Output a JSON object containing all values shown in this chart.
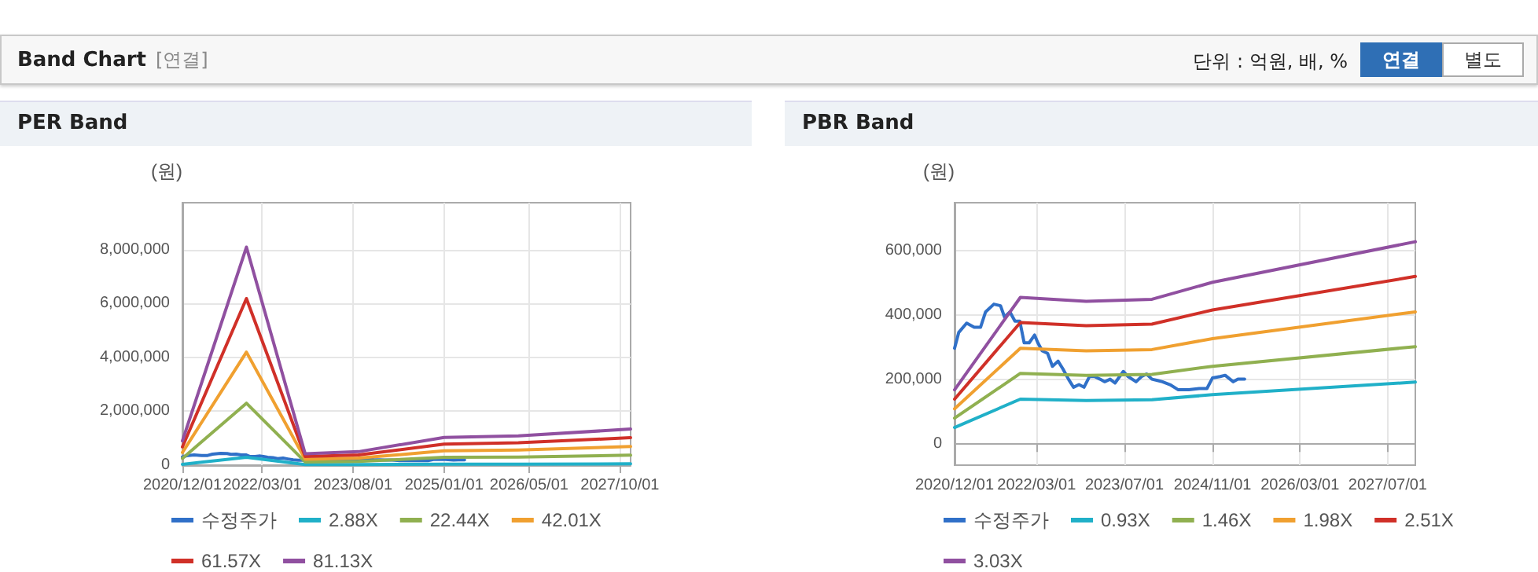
{
  "chart_data": [
    {
      "type": "other",
      "title": "Band Chart",
      "annotations": [
        "[연결]",
        "단위 : 억원, 배, %",
        "연결",
        "별도"
      ]
    },
    {
      "type": "line",
      "title": "PER Band",
      "ylabel": "(원)",
      "legend": "bottom",
      "grid": true,
      "marker": "none",
      "line_style": "solid",
      "x": [
        "2020-12-01",
        "2021-12-01",
        "2022-11-01",
        "2023-09-01",
        "2025-01-01",
        "2026-03-01",
        "2027-12-01"
      ],
      "xlim": [
        "2020-12-01",
        "2027-12-01"
      ],
      "xticks": [
        {
          "value": "2020-12-01",
          "label": "2020/12/01"
        },
        {
          "value": "2022-03-01",
          "label": "2022/03/01"
        },
        {
          "value": "2023-08-01",
          "label": "2023/08/01"
        },
        {
          "value": "2025-01-01",
          "label": "2025/01/01"
        },
        {
          "value": "2026-05-01",
          "label": "2026/05/01"
        },
        {
          "value": "2027-10-01",
          "label": "2027/10/01"
        }
      ],
      "ylim": [
        0,
        9750000
      ],
      "yticks": [
        0,
        {
          "value": 2000000,
          "label": "2,000,000"
        },
        {
          "value": 4000000,
          "label": "4,000,000"
        },
        {
          "value": 6000000,
          "label": "6,000,000"
        },
        {
          "value": 8000000,
          "label": "8,000,000"
        }
      ],
      "series": [
        {
          "name": "수정주가",
          "color": "#3070c8",
          "x": [
            "2020-12-01",
            "2020-12-24",
            "2021-02-06",
            "2021-03-20",
            "2021-04-24",
            "2021-05-22",
            "2021-07-07",
            "2021-08-13",
            "2021-09-04",
            "2021-10-04",
            "2021-11-01",
            "2021-11-28",
            "2021-12-22",
            "2022-01-19",
            "2022-02-18",
            "2022-03-08",
            "2022-04-01",
            "2022-05-01",
            "2022-05-28",
            "2022-06-28",
            "2022-07-25",
            "2022-08-25",
            "2022-09-22",
            "2022-10-22",
            "2022-11-19",
            "2022-12-19",
            "2023-01-16",
            "2023-02-16",
            "2023-03-13",
            "2023-04-13",
            "2023-05-10",
            "2023-06-25",
            "2023-07-22",
            "2023-09-04",
            "2023-10-04",
            "2023-11-01",
            "2023-12-01",
            "2024-01-01",
            "2024-01-28",
            "2024-03-10",
            "2024-04-25",
            "2024-06-22",
            "2024-08-19",
            "2024-10-01",
            "2024-11-01",
            "2024-12-13",
            "2025-01-10",
            "2025-02-24",
            "2025-03-22",
            "2025-04-28"
          ],
          "values": [
            300000,
            350000,
            380000,
            360000,
            360000,
            410000,
            440000,
            430000,
            400000,
            410000,
            380000,
            380000,
            320000,
            320000,
            340000,
            320000,
            290000,
            280000,
            240000,
            260000,
            230000,
            200000,
            180000,
            190000,
            180000,
            210000,
            210000,
            200000,
            190000,
            200000,
            190000,
            230000,
            210000,
            190000,
            210000,
            220000,
            200000,
            200000,
            190000,
            190000,
            170000,
            170000,
            170000,
            170000,
            210000,
            210000,
            210000,
            190000,
            200000,
            200000
          ]
        },
        {
          "name": "2.88X",
          "color": "#20b0c8",
          "values": [
            30000,
            290000,
            20000,
            20000,
            40000,
            40000,
            50000
          ]
        },
        {
          "name": "22.44X",
          "color": "#90b050",
          "values": [
            250000,
            2300000,
            120000,
            140000,
            290000,
            300000,
            370000
          ]
        },
        {
          "name": "42.01X",
          "color": "#f0a030",
          "values": [
            470000,
            4200000,
            220000,
            260000,
            530000,
            560000,
            690000
          ]
        },
        {
          "name": "61.57X",
          "color": "#d03028",
          "values": [
            680000,
            6190000,
            320000,
            380000,
            780000,
            830000,
            1020000
          ]
        },
        {
          "name": "81.13X",
          "color": "#9050a0",
          "values": [
            900000,
            8100000,
            420000,
            500000,
            1030000,
            1090000,
            1340000
          ]
        }
      ]
    },
    {
      "type": "line",
      "title": "PBR Band",
      "ylabel": "(원)",
      "legend": "bottom",
      "grid": true,
      "marker": "none",
      "line_style": "solid",
      "x": [
        "2020-12-01",
        "2021-12-01",
        "2022-12-01",
        "2023-12-01",
        "2024-11-01",
        "2027-12-01"
      ],
      "xlim": [
        "2020-12-01",
        "2027-12-01"
      ],
      "xticks": [
        {
          "value": "2020-12-01",
          "label": "2020/12/01"
        },
        {
          "value": "2022-03-01",
          "label": "2022/03/01"
        },
        {
          "value": "2023-07-01",
          "label": "2023/07/01"
        },
        {
          "value": "2024-11-01",
          "label": "2024/11/01"
        },
        {
          "value": "2026-03-01",
          "label": "2026/03/01"
        },
        {
          "value": "2027-07-01",
          "label": "2027/07/01"
        }
      ],
      "ylim": [
        -65000,
        750000
      ],
      "yticks": [
        0,
        {
          "value": 200000,
          "label": "200,000"
        },
        {
          "value": 400000,
          "label": "400,000"
        },
        {
          "value": 600000,
          "label": "600,000"
        }
      ],
      "series": [
        {
          "name": "수정주가",
          "color": "#3070c8",
          "x": [
            "2020-12-01",
            "2020-12-24",
            "2021-02-06",
            "2021-03-20",
            "2021-04-24",
            "2021-05-22",
            "2021-07-07",
            "2021-08-13",
            "2021-09-04",
            "2021-10-04",
            "2021-11-01",
            "2021-11-28",
            "2021-12-22",
            "2022-01-19",
            "2022-02-18",
            "2022-03-08",
            "2022-04-01",
            "2022-05-01",
            "2022-05-28",
            "2022-06-28",
            "2022-07-25",
            "2022-08-25",
            "2022-09-22",
            "2022-10-22",
            "2022-11-19",
            "2022-12-19",
            "2023-01-16",
            "2023-02-16",
            "2023-03-13",
            "2023-04-13",
            "2023-05-10",
            "2023-06-25",
            "2023-07-22",
            "2023-09-04",
            "2023-10-04",
            "2023-11-01",
            "2023-12-01",
            "2024-01-01",
            "2024-01-28",
            "2024-03-10",
            "2024-04-25",
            "2024-06-22",
            "2024-08-19",
            "2024-10-01",
            "2024-11-01",
            "2024-12-13",
            "2025-01-10",
            "2025-02-24",
            "2025-03-22",
            "2025-04-28"
          ],
          "values": [
            298000,
            347000,
            376000,
            363000,
            363000,
            411000,
            435000,
            430000,
            395000,
            411000,
            382000,
            382000,
            315000,
            315000,
            339000,
            315000,
            290000,
            282000,
            242000,
            258000,
            234000,
            202000,
            177000,
            185000,
            177000,
            210000,
            210000,
            202000,
            194000,
            202000,
            190000,
            226000,
            210000,
            194000,
            210000,
            218000,
            202000,
            198000,
            194000,
            185000,
            169000,
            169000,
            173000,
            173000,
            206000,
            210000,
            214000,
            194000,
            202000,
            202000
          ]
        },
        {
          "name": "0.93X",
          "color": "#20b0c8",
          "values": [
            52000,
            140000,
            136000,
            138000,
            154000,
            193000
          ]
        },
        {
          "name": "1.46X",
          "color": "#90b050",
          "values": [
            81000,
            220000,
            214000,
            217000,
            242000,
            303000
          ]
        },
        {
          "name": "1.98X",
          "color": "#f0a030",
          "values": [
            110000,
            298000,
            290000,
            294000,
            328000,
            411000
          ]
        },
        {
          "name": "2.51X",
          "color": "#d03028",
          "values": [
            140000,
            378000,
            368000,
            373000,
            417000,
            521000
          ]
        },
        {
          "name": "3.03X",
          "color": "#9050a0",
          "values": [
            169000,
            456000,
            444000,
            450000,
            503000,
            629000
          ]
        }
      ]
    }
  ]
}
